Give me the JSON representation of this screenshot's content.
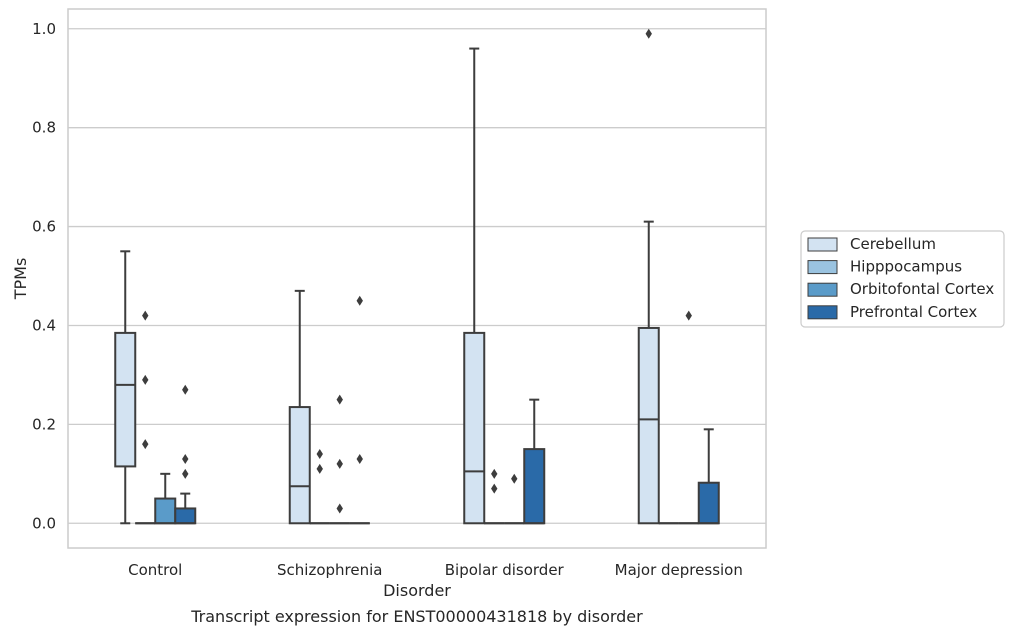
{
  "caption": "Transcript expression for ENST00000431818 by disorder",
  "chart_data": {
    "type": "boxplot",
    "xlabel": "Disorder",
    "ylabel": "TPMs",
    "ylim": [
      -0.05,
      1.04
    ],
    "yticks": [
      "0.0",
      "0.2",
      "0.4",
      "0.6",
      "0.8",
      "1.0"
    ],
    "grid": "horizontal",
    "legend_position": "right",
    "categories": [
      "Control",
      "Schizophrenia",
      "Bipolar disorder",
      "Major depression"
    ],
    "series": [
      {
        "name": "Cerebellum",
        "color": "#d3e3f2",
        "boxes": [
          {
            "whislo": 0.0,
            "q1": 0.115,
            "med": 0.28,
            "q3": 0.385,
            "whishi": 0.55,
            "fliers": []
          },
          {
            "whislo": 0.0,
            "q1": 0.0,
            "med": 0.075,
            "q3": 0.235,
            "whishi": 0.47,
            "fliers": []
          },
          {
            "whislo": 0.0,
            "q1": 0.0,
            "med": 0.105,
            "q3": 0.385,
            "whishi": 0.96,
            "fliers": []
          },
          {
            "whislo": 0.0,
            "q1": 0.0,
            "med": 0.21,
            "q3": 0.395,
            "whishi": 0.61,
            "fliers": [
              0.99
            ]
          }
        ]
      },
      {
        "name": "Hipppocampus",
        "color": "#9ac3e0",
        "boxes": [
          {
            "whislo": 0.0,
            "q1": 0.0,
            "med": 0.0,
            "q3": 0.0,
            "whishi": 0.0,
            "fliers": [
              0.42,
              0.29,
              0.16
            ]
          },
          {
            "whislo": 0.0,
            "q1": 0.0,
            "med": 0.0,
            "q3": 0.0,
            "whishi": 0.0,
            "fliers": [
              0.14,
              0.11
            ]
          },
          {
            "whislo": 0.0,
            "q1": 0.0,
            "med": 0.0,
            "q3": 0.0,
            "whishi": 0.0,
            "fliers": [
              0.1,
              0.07
            ]
          },
          {
            "whislo": 0.0,
            "q1": 0.0,
            "med": 0.0,
            "q3": 0.0,
            "whishi": 0.0,
            "fliers": []
          }
        ]
      },
      {
        "name": "Orbitofontal Cortex",
        "color": "#5a9bc9",
        "boxes": [
          {
            "whislo": 0.0,
            "q1": 0.0,
            "med": 0.0,
            "q3": 0.05,
            "whishi": 0.1,
            "fliers": []
          },
          {
            "whislo": 0.0,
            "q1": 0.0,
            "med": 0.0,
            "q3": 0.0,
            "whishi": 0.0,
            "fliers": [
              0.25,
              0.12,
              0.03
            ]
          },
          {
            "whislo": 0.0,
            "q1": 0.0,
            "med": 0.0,
            "q3": 0.0,
            "whishi": 0.0,
            "fliers": [
              0.09
            ]
          },
          {
            "whislo": 0.0,
            "q1": 0.0,
            "med": 0.0,
            "q3": 0.0,
            "whishi": 0.0,
            "fliers": [
              0.42
            ]
          }
        ]
      },
      {
        "name": "Prefrontal Cortex",
        "color": "#2a6aa8",
        "boxes": [
          {
            "whislo": 0.0,
            "q1": 0.0,
            "med": 0.0,
            "q3": 0.03,
            "whishi": 0.06,
            "fliers": [
              0.27,
              0.13,
              0.1
            ]
          },
          {
            "whislo": 0.0,
            "q1": 0.0,
            "med": 0.0,
            "q3": 0.0,
            "whishi": 0.0,
            "fliers": [
              0.45,
              0.13
            ]
          },
          {
            "whislo": 0.0,
            "q1": 0.0,
            "med": 0.0,
            "q3": 0.15,
            "whishi": 0.25,
            "fliers": []
          },
          {
            "whislo": 0.0,
            "q1": 0.0,
            "med": 0.0,
            "q3": 0.082,
            "whishi": 0.19,
            "fliers": []
          }
        ]
      }
    ]
  }
}
